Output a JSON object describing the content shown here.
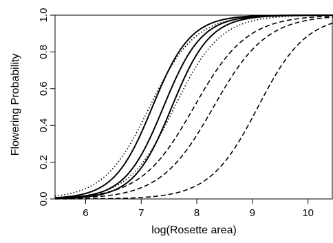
{
  "chart_data": {
    "type": "line",
    "title": "",
    "xlabel": "log(Rosette area)",
    "ylabel": "Flowering Probability",
    "xlim": [
      5.45,
      10.45
    ],
    "ylim": [
      0.0,
      1.0
    ],
    "x_ticks": [
      "6",
      "7",
      "8",
      "9",
      "10"
    ],
    "y_ticks": [
      "0.0",
      "0.2",
      "0.4",
      "0.6",
      "0.8",
      "1.0"
    ],
    "grid": false,
    "legend": "none",
    "series": [
      {
        "style": "dotted",
        "midpoint": 7.15,
        "slope": 2.45
      },
      {
        "style": "solid",
        "midpoint": 7.2,
        "slope": 2.9
      },
      {
        "style": "solid",
        "midpoint": 7.4,
        "slope": 2.9
      },
      {
        "style": "solid",
        "midpoint": 7.55,
        "slope": 2.9
      },
      {
        "style": "dotted",
        "midpoint": 7.6,
        "slope": 2.45
      },
      {
        "style": "dashed",
        "midpoint": 7.95,
        "slope": 2.1
      },
      {
        "style": "dashed",
        "midpoint": 8.3,
        "slope": 2.1
      },
      {
        "style": "dashed",
        "midpoint": 9.1,
        "slope": 2.3
      }
    ]
  }
}
